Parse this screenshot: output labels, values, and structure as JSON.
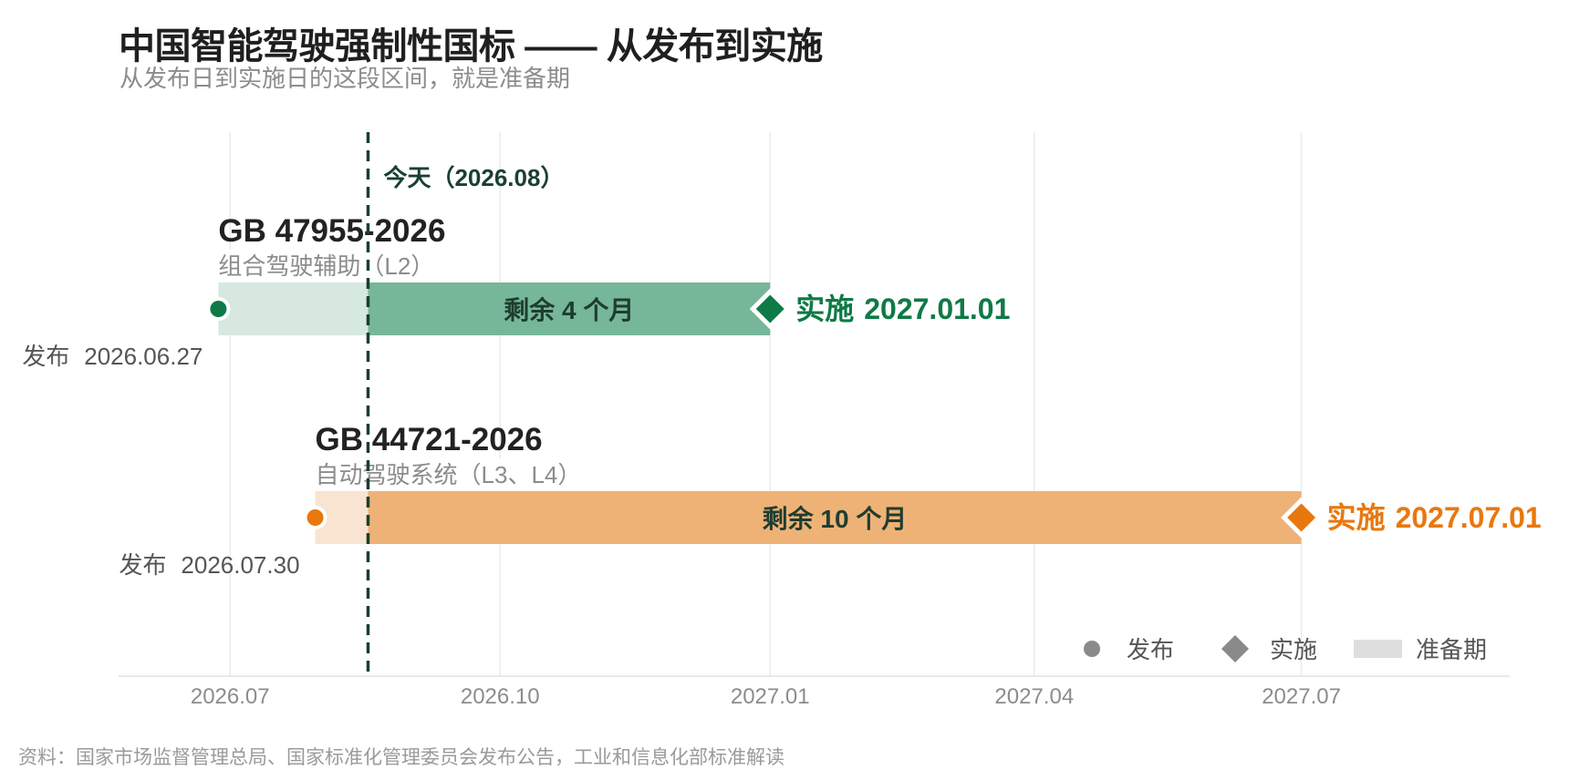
{
  "header": {
    "title": "中国智能驾驶强制性国标 —— 从发布到实施",
    "subtitle": "从发布日到实施日的这段区间，就是准备期"
  },
  "source_note": "资料：国家市场监督管理总局、国家标准化管理委员会发布公告，工业和信息化部标准解读",
  "chart_data": {
    "type": "gantt",
    "x_axis": {
      "type": "date",
      "ticks": [
        "2026-07-01",
        "2026-10-01",
        "2027-01-01",
        "2027-04-01",
        "2027-07-01"
      ],
      "tick_labels": [
        "2026.07",
        "2026.10",
        "2027.01",
        "2027.04",
        "2027.07"
      ],
      "range": [
        "2026-05-24",
        "2027-09-10"
      ]
    },
    "today": {
      "date": "2026-08-17",
      "label": "今天（2026.08）"
    },
    "series": [
      {
        "code": "GB 47955-2026",
        "name": "组合驾驶辅助（L2）",
        "publish_date": "2026-06-27",
        "publish_prefix": "发布",
        "publish_label": "2026.06.27",
        "implement_date": "2027-01-01",
        "implement_prefix": "实施",
        "implement_label": "2027.01.01",
        "remaining_label": "剩余 4 个月",
        "color": "#0e7a45",
        "bar_color": "#76b799",
        "elapsed_color": "#d6e8df"
      },
      {
        "code": "GB 44721-2026",
        "name": "自动驾驶系统（L3、L4）",
        "publish_date": "2026-07-30",
        "publish_prefix": "发布",
        "publish_label": "2026.07.30",
        "implement_date": "2027-07-01",
        "implement_prefix": "实施",
        "implement_label": "2027.07.01",
        "remaining_label": "剩余 10 个月",
        "color": "#e8780e",
        "bar_color": "#eeb277",
        "elapsed_color": "#f8e4d1"
      }
    ],
    "legend": [
      {
        "label": "发布",
        "marker": "circle"
      },
      {
        "label": "实施",
        "marker": "diamond"
      },
      {
        "label": "准备期",
        "marker": "rect"
      }
    ],
    "legend_color": "#8a8a8a",
    "legend_band_color": "#dedede",
    "today_line_color": "#17402f",
    "grid": true
  }
}
